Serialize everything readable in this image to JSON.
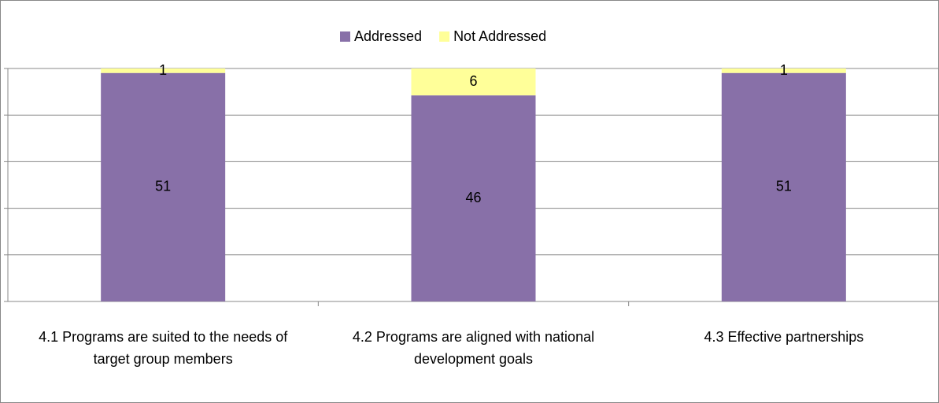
{
  "chart_data": {
    "type": "bar",
    "stack": "percent",
    "categories": [
      "4.1 Programs are suited to the needs of target group members",
      "4.2 Programs are aligned with national development goals",
      "4.3 Effective partnerships"
    ],
    "series": [
      {
        "name": "Addressed",
        "color": "#8870a8",
        "values": [
          51,
          46,
          51
        ]
      },
      {
        "name": "Not Addressed",
        "color": "#ffff99",
        "values": [
          1,
          6,
          1
        ]
      }
    ],
    "ylim": [
      0,
      100
    ],
    "yticks": [
      0,
      20,
      40,
      60,
      80,
      100
    ],
    "grid": true,
    "legend": "top"
  }
}
